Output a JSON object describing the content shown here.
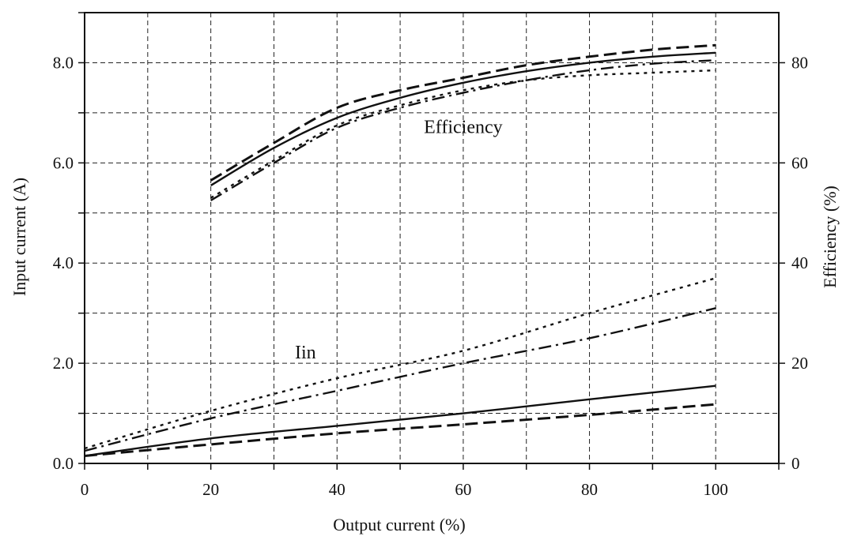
{
  "chart_data": {
    "type": "line",
    "xlabel": "Output current (%)",
    "ylabel": "Input current (A)",
    "y2label": "Efficiency  (%)",
    "xlim": [
      0,
      110
    ],
    "ylim": [
      0,
      9
    ],
    "y2lim": [
      0,
      90
    ],
    "x_ticks": [
      0,
      20,
      40,
      60,
      80,
      100
    ],
    "y_ticks": [
      0,
      1,
      2,
      3,
      4,
      5,
      6,
      7,
      8,
      9
    ],
    "y_tick_labels": [
      "0.0",
      "",
      "2.0",
      "",
      "4.0",
      "",
      "6.0",
      "",
      "8.0",
      ""
    ],
    "y2_ticks": [
      0,
      20,
      40,
      60,
      80
    ],
    "y2_tick_labels": [
      "0",
      "20",
      "40",
      "60",
      "80"
    ],
    "grid": true,
    "annotations": [
      {
        "text": "Efficiency",
        "x": 60,
        "y": 6.6
      },
      {
        "text": "Iin",
        "x": 35,
        "y": 2.1
      }
    ],
    "series": [
      {
        "style": "solid",
        "axis": "right",
        "x": [
          20,
          30,
          40,
          50,
          60,
          70,
          80,
          90,
          100
        ],
        "y": [
          55.5,
          63,
          69,
          73,
          76,
          78.3,
          80,
          81.2,
          82
        ]
      },
      {
        "style": "dashed",
        "axis": "right",
        "x": [
          20,
          30,
          40,
          50,
          60,
          70,
          80,
          90,
          100
        ],
        "y": [
          56.5,
          64,
          71,
          74.5,
          77,
          79.5,
          81.2,
          82.6,
          83.5
        ]
      },
      {
        "style": "dashdot",
        "axis": "right",
        "x": [
          20,
          30,
          40,
          50,
          60,
          70,
          80,
          90,
          100
        ],
        "y": [
          52.5,
          60,
          67,
          71,
          74,
          76.5,
          78.5,
          79.8,
          80.5
        ]
      },
      {
        "style": "dotted",
        "axis": "right",
        "x": [
          20,
          30,
          40,
          50,
          60,
          70,
          80,
          90,
          100
        ],
        "y": [
          53,
          60.5,
          67.5,
          71.5,
          74.5,
          76.5,
          77.5,
          78,
          78.5
        ]
      },
      {
        "style": "solid",
        "axis": "left",
        "x": [
          0,
          20,
          40,
          60,
          80,
          100
        ],
        "y": [
          0.15,
          0.5,
          0.75,
          1.0,
          1.28,
          1.55
        ]
      },
      {
        "style": "dashed",
        "axis": "left",
        "x": [
          0,
          20,
          40,
          60,
          80,
          100
        ],
        "y": [
          0.15,
          0.38,
          0.6,
          0.78,
          0.97,
          1.18
        ]
      },
      {
        "style": "dashdot",
        "axis": "left",
        "x": [
          0,
          20,
          40,
          60,
          80,
          100
        ],
        "y": [
          0.25,
          0.9,
          1.45,
          2.0,
          2.5,
          3.1
        ]
      },
      {
        "style": "dotted",
        "axis": "left",
        "x": [
          0,
          20,
          40,
          60,
          80,
          100
        ],
        "y": [
          0.3,
          1.05,
          1.7,
          2.25,
          3.0,
          3.7
        ]
      }
    ]
  }
}
